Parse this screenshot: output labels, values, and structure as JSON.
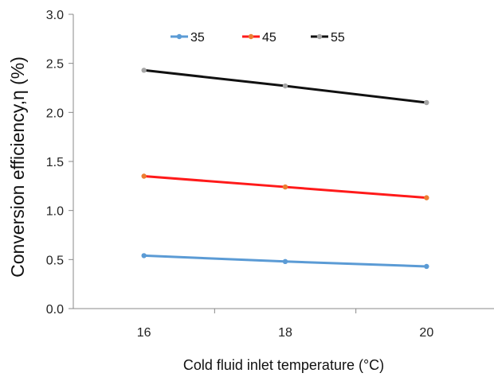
{
  "chart_data": {
    "type": "line",
    "title": "",
    "xlabel": "Cold fluid inlet temperature (°C)",
    "ylabel": "Conversion efficiency,η (%)",
    "x": [
      16,
      18,
      20
    ],
    "xlim": [
      15,
      21
    ],
    "xticks": [
      "16",
      "18",
      "20"
    ],
    "ylim": [
      0,
      3
    ],
    "yticks": [
      "0.0",
      "0.5",
      "1.0",
      "1.5",
      "2.0",
      "2.5",
      "3.0"
    ],
    "grid": false,
    "legend_position": "top",
    "series": [
      {
        "name": "35",
        "color": "#5b9bd5",
        "values": [
          0.54,
          0.48,
          0.43
        ]
      },
      {
        "name": "45",
        "color": "#ff1a1a",
        "values": [
          1.35,
          1.24,
          1.13
        ]
      },
      {
        "name": "55",
        "color": "#111111",
        "values": [
          2.43,
          2.27,
          2.1
        ]
      }
    ],
    "marker_colors": {
      "35": "#5b9bd5",
      "45": "#ed7d31",
      "55": "#a5a5a5"
    }
  }
}
